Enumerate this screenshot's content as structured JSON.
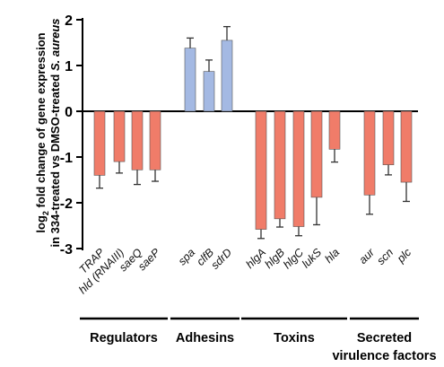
{
  "chart_data": {
    "type": "bar",
    "ylabel_line1": "log",
    "ylabel_sub": "2",
    "ylabel_line1_rest": " fold change of gene expression",
    "ylabel_line2_a": "in 334-treated vs DMSO-treated ",
    "ylabel_line2_b": "S. aureus",
    "ylim": [
      -3,
      2
    ],
    "yticks": [
      "-3",
      "-2",
      "-1",
      "0",
      "1",
      "2"
    ],
    "grid": false,
    "colors": {
      "down": "#f07c69",
      "up": "#a4b9e3",
      "edge": "#555555",
      "axis": "#000000"
    },
    "categories": [
      "TRAP",
      "hld (RNAIII)",
      "saeQ",
      "saeP",
      "spa",
      "clfB",
      "sdrD",
      "hlgA",
      "hlgB",
      "hlgC",
      "lukS",
      "hla",
      "aur",
      "scn",
      "plc"
    ],
    "values": [
      -1.4,
      -1.1,
      -1.28,
      -1.28,
      1.38,
      0.87,
      1.55,
      -2.58,
      -2.35,
      -2.52,
      -1.88,
      -0.83,
      -1.83,
      -1.17,
      -1.55
    ],
    "errors": [
      0.28,
      0.25,
      0.32,
      0.25,
      0.22,
      0.25,
      0.3,
      0.2,
      0.18,
      0.2,
      0.6,
      0.28,
      0.42,
      0.22,
      0.42
    ],
    "groups": [
      {
        "label": "Regulators",
        "start": 0,
        "end": 3
      },
      {
        "label": "Adhesins",
        "start": 4,
        "end": 6
      },
      {
        "label": "Toxins",
        "start": 7,
        "end": 11
      },
      {
        "label": "Secreted",
        "label2": "virulence factors",
        "start": 12,
        "end": 14
      }
    ]
  }
}
